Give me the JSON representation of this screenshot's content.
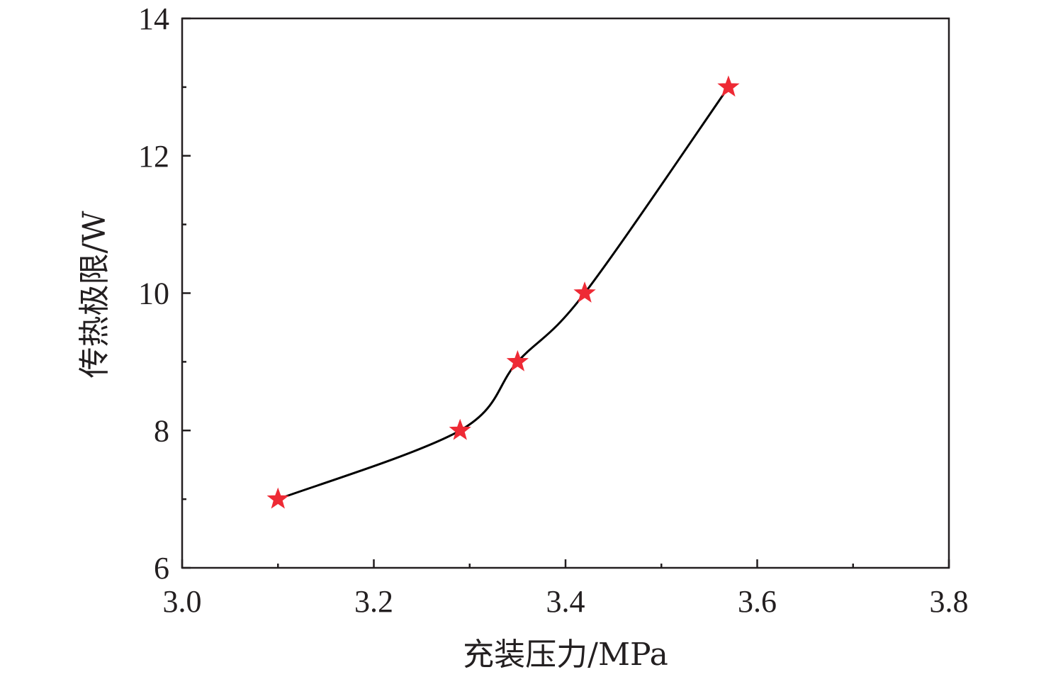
{
  "chart_data": {
    "type": "line",
    "title": "",
    "xlabel": "充装压力/MPa",
    "ylabel": "传热极限/W",
    "xlim": [
      3.0,
      3.8
    ],
    "ylim": [
      6,
      14
    ],
    "xticks": [
      3.0,
      3.2,
      3.4,
      3.6,
      3.8
    ],
    "xtick_labels": [
      "3.0",
      "3.2",
      "3.4",
      "3.6",
      "3.8"
    ],
    "yticks": [
      6,
      8,
      10,
      12,
      14
    ],
    "ytick_labels": [
      "6",
      "8",
      "10",
      "12",
      "14"
    ],
    "grid": false,
    "legend": "none",
    "series": [
      {
        "marker": "star",
        "marker_color": "#ee2a35",
        "line_color": "#000000",
        "line_style": "smooth",
        "x": [
          3.1,
          3.29,
          3.35,
          3.42,
          3.57
        ],
        "y": [
          7,
          8,
          9,
          10,
          13
        ]
      }
    ]
  }
}
